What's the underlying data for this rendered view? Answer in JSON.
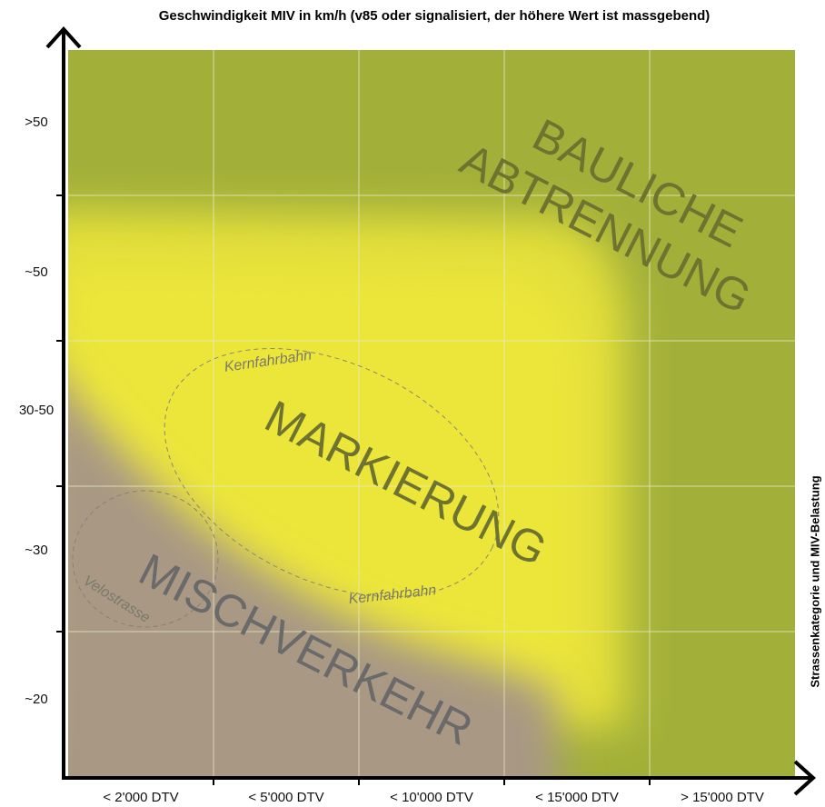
{
  "title": "Geschwindigkeit MIV in km/h (v85 oder signalisiert, der höhere Wert ist massgebend)",
  "side_label": "Strassenkategorie und  MIV-Belastung",
  "y_axis": {
    "labels": [
      ">50",
      "~50",
      "30-50",
      "~30",
      "~20"
    ]
  },
  "x_axis": {
    "labels": [
      "< 2'000 DTV",
      "< 5'000 DTV",
      "< 10'000 DTV",
      "< 15'000 DTV",
      "> 15'000 DTV"
    ]
  },
  "regions": [
    {
      "lines": [
        "BAULICHE",
        "ABTRENNUNG"
      ]
    },
    {
      "lines": [
        "MARKIERUNG"
      ]
    },
    {
      "lines": [
        "MISCHVERKEHR"
      ]
    }
  ],
  "ellipses": {
    "kernfahrbahn_top": "Kernfahrbahn",
    "kernfahrbahn_bottom": "Kernfahrbahn",
    "velostrasse": "Velostrasse"
  }
}
